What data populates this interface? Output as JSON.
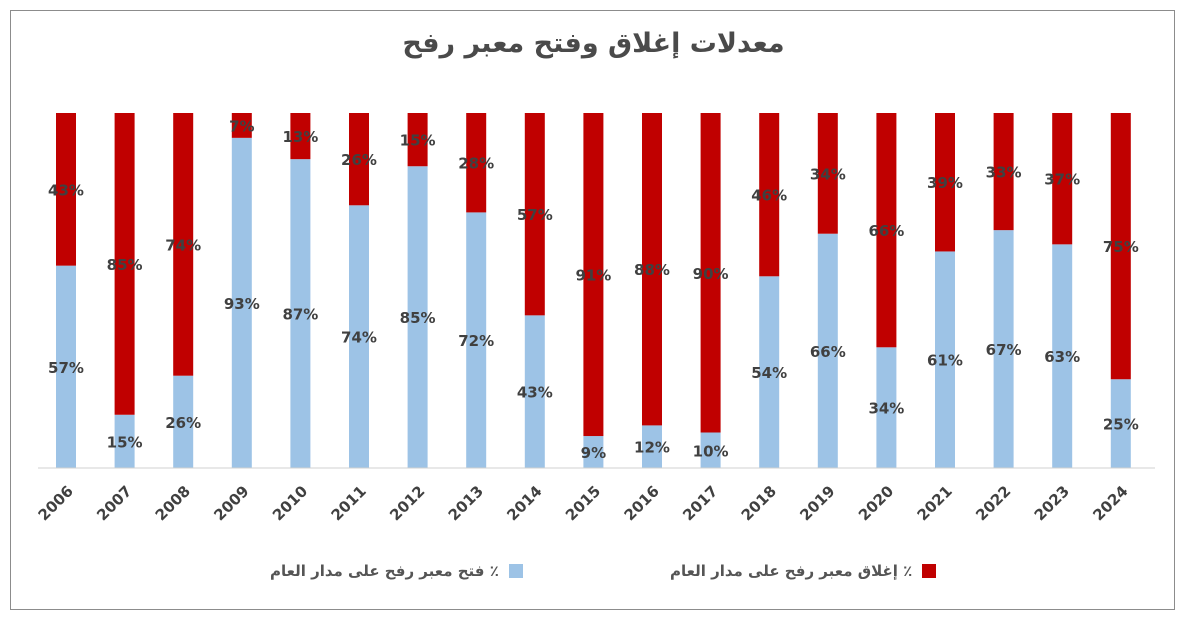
{
  "chart_data": {
    "type": "bar",
    "stacked": true,
    "title": "معدلات إغلاق وفتح معبر رفح",
    "categories": [
      "2006",
      "2007",
      "2008",
      "2009",
      "2010",
      "2011",
      "2012",
      "2013",
      "2014",
      "2015",
      "2016",
      "2017",
      "2018",
      "2019",
      "2020",
      "2021",
      "2022",
      "2023",
      "2024"
    ],
    "series": [
      {
        "name": "٪ فتح معبر رفح على مدار العام",
        "color": "#9dc3e6",
        "values": [
          57,
          15,
          26,
          93,
          87,
          74,
          85,
          72,
          43,
          9,
          12,
          10,
          54,
          66,
          34,
          61,
          67,
          63,
          25
        ],
        "labels": [
          "57%",
          "15%",
          "26%",
          "93%",
          "87%",
          "74%",
          "85%",
          "72%",
          "43%",
          "9%",
          "12%",
          "10%",
          "54%",
          "66%",
          "34%",
          "61%",
          "67%",
          "63%",
          "25%"
        ]
      },
      {
        "name": "٪ إغلاق معبر رفح على مدار العام",
        "color": "#c00000",
        "values": [
          43,
          85,
          74,
          7,
          13,
          26,
          15,
          28,
          57,
          91,
          88,
          90,
          46,
          34,
          66,
          39,
          33,
          37,
          75
        ],
        "labels": [
          "43%",
          "85%",
          "74%",
          "7%",
          "13%",
          "26%",
          "15%",
          "28%",
          "57%",
          "91%",
          "88%",
          "90%",
          "46%",
          "34%",
          "66%",
          "39%",
          "33%",
          "37%",
          "75%"
        ]
      }
    ],
    "ylim": [
      0,
      100
    ],
    "legend_position": "bottom",
    "grid": false
  }
}
